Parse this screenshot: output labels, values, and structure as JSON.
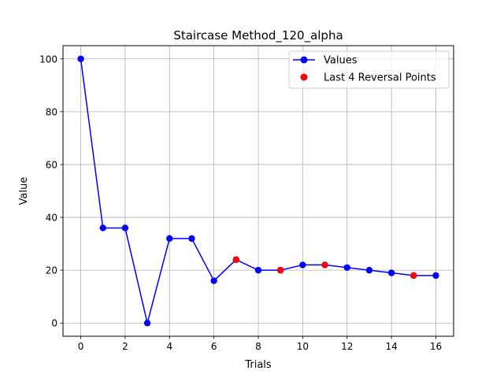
{
  "chart_data": {
    "type": "line",
    "title": "Staircase Method_120_alpha",
    "xlabel": "Trials",
    "ylabel": "Value",
    "xlim": [
      -0.8,
      16.8
    ],
    "ylim": [
      -5,
      105
    ],
    "xticks": [
      0,
      2,
      4,
      6,
      8,
      10,
      12,
      14,
      16
    ],
    "yticks": [
      0,
      20,
      40,
      60,
      80,
      100
    ],
    "grid": true,
    "legend_position": "top-right",
    "series": [
      {
        "name": "Values",
        "color": "#0000ff",
        "marker": "circle",
        "x": [
          0,
          1,
          2,
          3,
          4,
          5,
          6,
          7,
          8,
          9,
          10,
          11,
          12,
          13,
          14,
          15,
          16
        ],
        "values": [
          100,
          36,
          36,
          0,
          32,
          32,
          16,
          24,
          20,
          20,
          22,
          22,
          21,
          20,
          19,
          18,
          18
        ]
      },
      {
        "name": "Last 4 Reversal Points",
        "color": "#ff0000",
        "marker": "circle",
        "style": "points",
        "x": [
          7,
          9,
          11,
          15
        ],
        "values": [
          24,
          20,
          22,
          18
        ]
      }
    ]
  }
}
